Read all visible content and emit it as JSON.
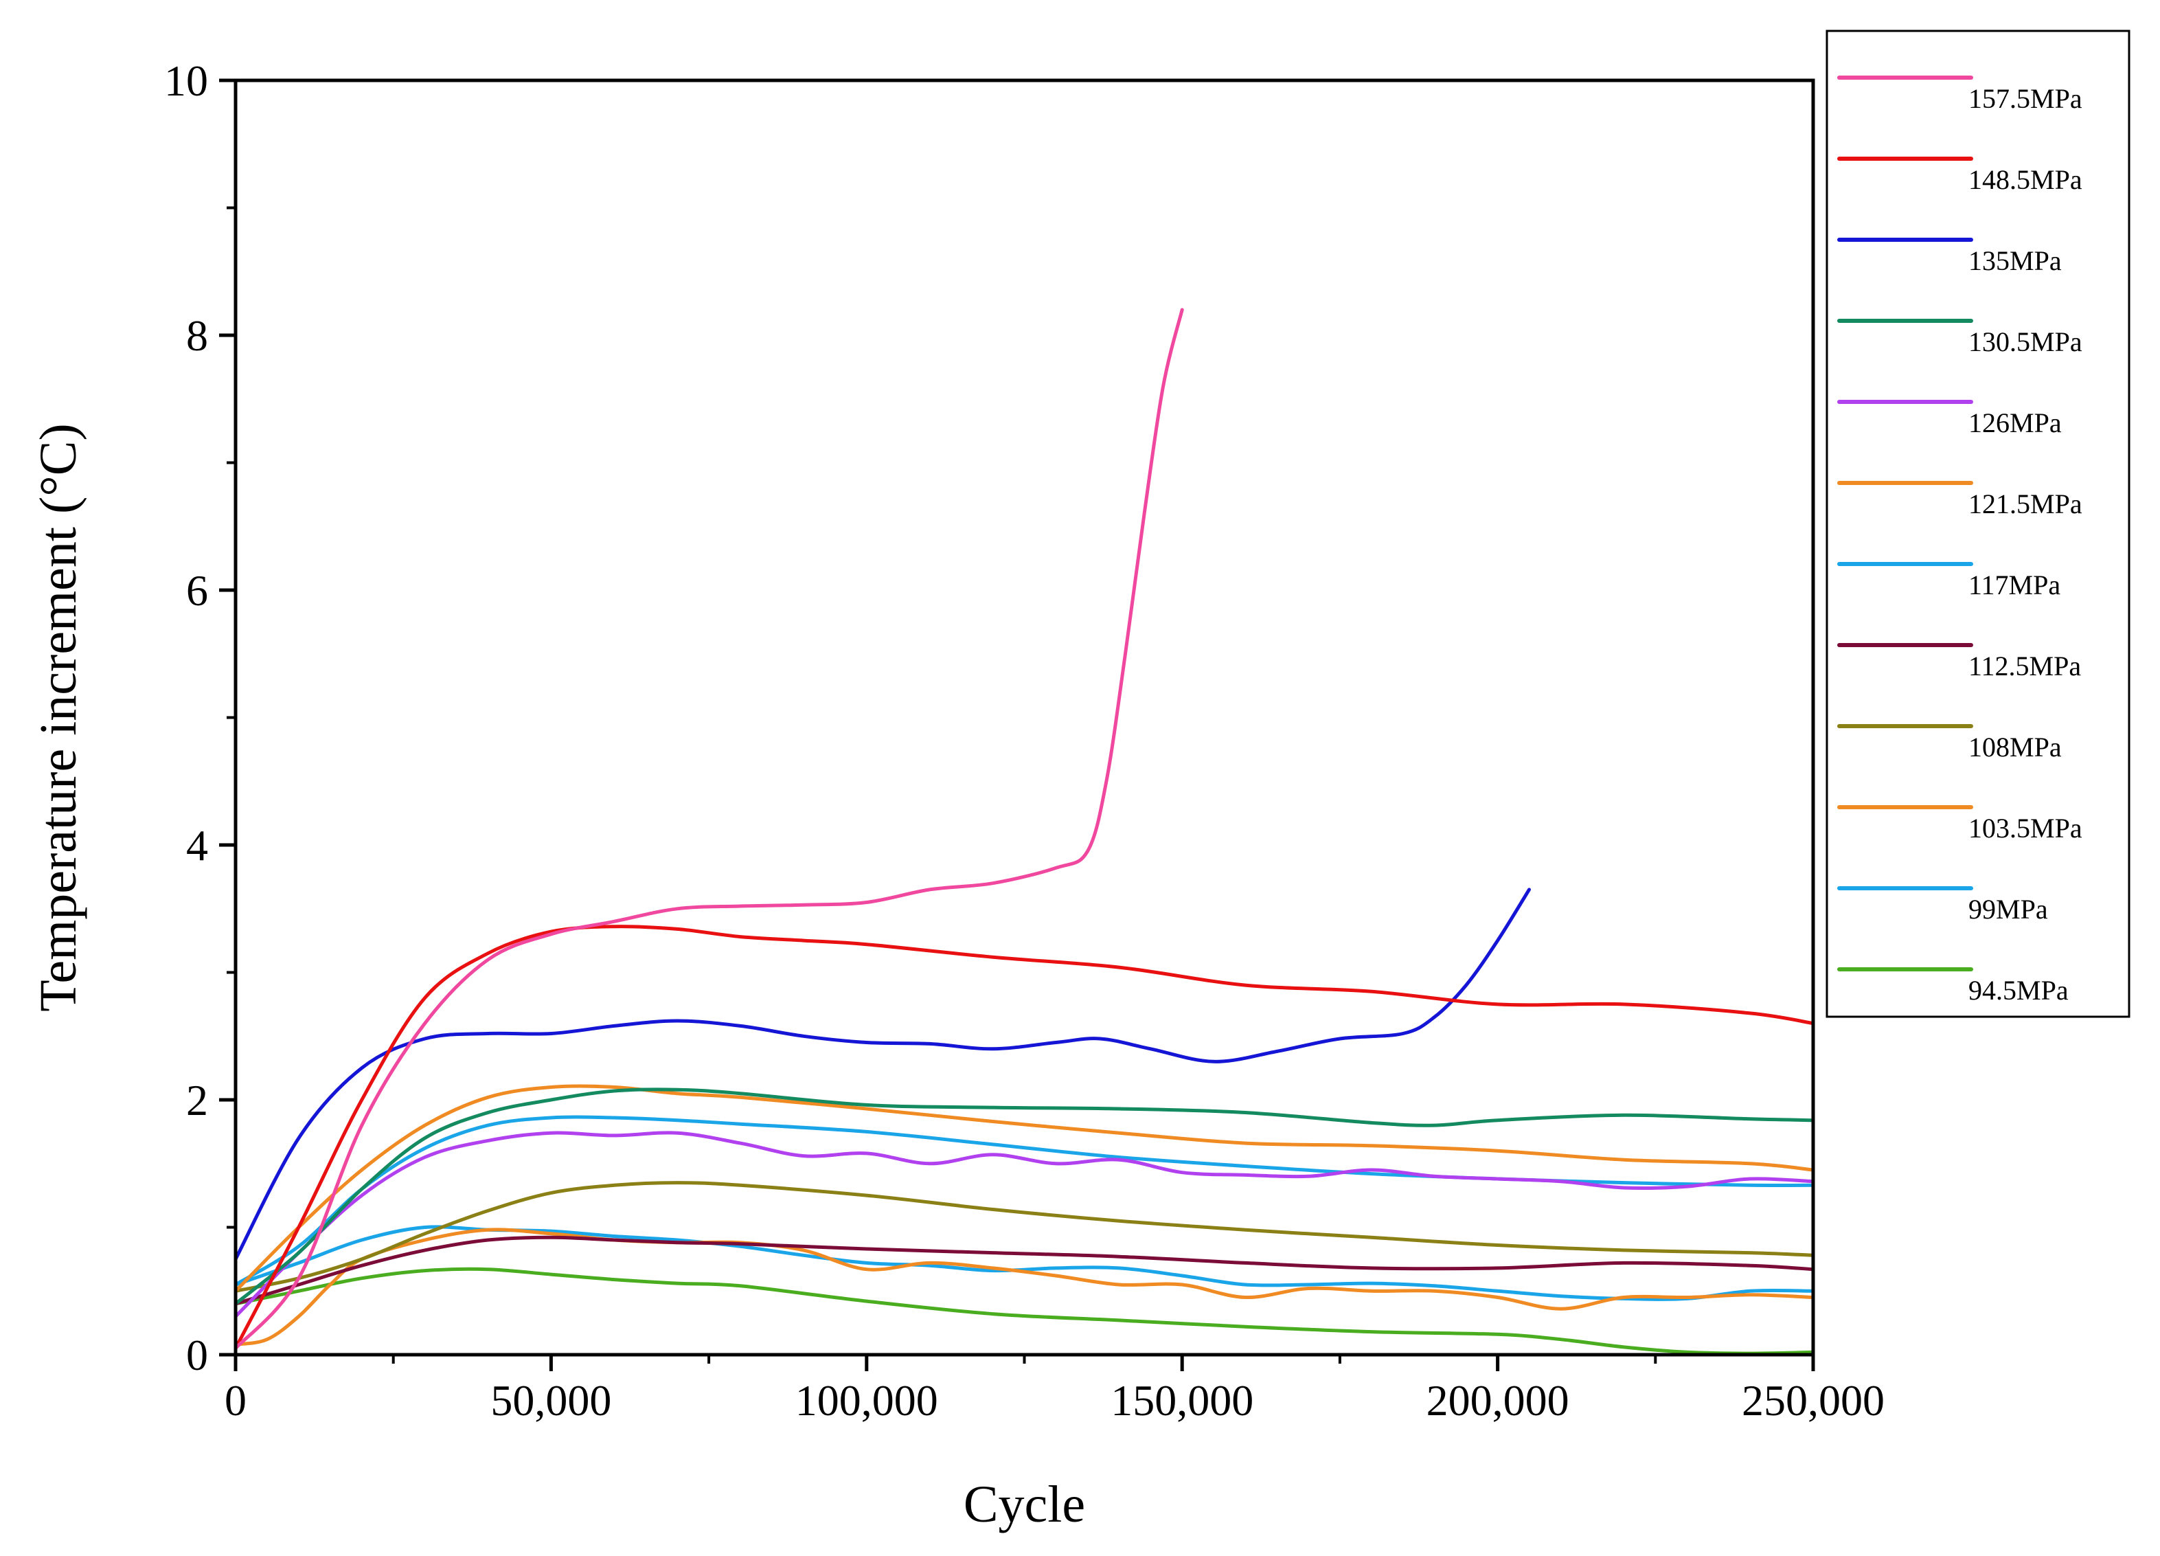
{
  "chart_data": {
    "type": "line",
    "title": "",
    "xlabel": "Cycle",
    "ylabel": "Temperature increment (°C)",
    "xlim": [
      0,
      250000
    ],
    "ylim": [
      0,
      10
    ],
    "x_ticks": [
      0,
      50000,
      100000,
      150000,
      200000,
      250000
    ],
    "x_tick_labels": [
      "0",
      "50,000",
      "100,000",
      "150,000",
      "200,000",
      "250,000"
    ],
    "y_ticks": [
      0,
      2,
      4,
      6,
      8,
      10
    ],
    "y_tick_labels": [
      "0",
      "2",
      "4",
      "6",
      "8",
      "10"
    ],
    "grid": false,
    "legend_position": "outside-top-right",
    "series": [
      {
        "name": "157.5MPa",
        "color": "#f0489f",
        "x": [
          0,
          10000,
          20000,
          30000,
          40000,
          50000,
          60000,
          70000,
          80000,
          90000,
          100000,
          110000,
          120000,
          130000,
          135000,
          138000,
          141000,
          144000,
          147000,
          150000
        ],
        "y": [
          0.05,
          0.6,
          1.8,
          2.6,
          3.1,
          3.3,
          3.4,
          3.5,
          3.52,
          3.53,
          3.55,
          3.65,
          3.7,
          3.82,
          3.95,
          4.5,
          5.5,
          6.6,
          7.6,
          8.2
        ]
      },
      {
        "name": "148.5MPa",
        "color": "#e81010",
        "x": [
          0,
          10000,
          20000,
          30000,
          40000,
          50000,
          60000,
          70000,
          80000,
          90000,
          100000,
          120000,
          140000,
          160000,
          180000,
          200000,
          220000,
          240000,
          250000
        ],
        "y": [
          0.05,
          1.0,
          2.0,
          2.8,
          3.15,
          3.32,
          3.36,
          3.34,
          3.28,
          3.25,
          3.22,
          3.12,
          3.04,
          2.9,
          2.85,
          2.75,
          2.75,
          2.68,
          2.6
        ]
      },
      {
        "name": "135MPa",
        "color": "#1515d6",
        "x": [
          0,
          10000,
          20000,
          30000,
          40000,
          50000,
          60000,
          70000,
          80000,
          90000,
          100000,
          110000,
          120000,
          130000,
          137000,
          145000,
          155000,
          165000,
          175000,
          185000,
          190000,
          195000,
          200000,
          205000
        ],
        "y": [
          0.75,
          1.7,
          2.25,
          2.48,
          2.52,
          2.52,
          2.58,
          2.62,
          2.58,
          2.5,
          2.45,
          2.44,
          2.4,
          2.45,
          2.48,
          2.4,
          2.3,
          2.38,
          2.48,
          2.52,
          2.65,
          2.9,
          3.25,
          3.65
        ]
      },
      {
        "name": "130.5MPa",
        "color": "#138a5f",
        "x": [
          0,
          10000,
          20000,
          30000,
          40000,
          50000,
          60000,
          70000,
          80000,
          100000,
          120000,
          140000,
          160000,
          180000,
          190000,
          200000,
          220000,
          240000,
          250000
        ],
        "y": [
          0.4,
          0.8,
          1.3,
          1.7,
          1.9,
          2.0,
          2.07,
          2.08,
          2.05,
          1.96,
          1.94,
          1.93,
          1.9,
          1.82,
          1.8,
          1.84,
          1.88,
          1.85,
          1.84
        ]
      },
      {
        "name": "126MPa",
        "color": "#b140ef",
        "x": [
          0,
          10000,
          20000,
          30000,
          40000,
          50000,
          60000,
          70000,
          80000,
          90000,
          100000,
          110000,
          120000,
          130000,
          140000,
          150000,
          160000,
          170000,
          180000,
          190000,
          200000,
          210000,
          220000,
          230000,
          240000,
          250000
        ],
        "y": [
          0.3,
          0.8,
          1.25,
          1.55,
          1.68,
          1.74,
          1.72,
          1.74,
          1.66,
          1.56,
          1.58,
          1.5,
          1.57,
          1.5,
          1.53,
          1.43,
          1.41,
          1.4,
          1.45,
          1.4,
          1.38,
          1.36,
          1.31,
          1.32,
          1.38,
          1.36
        ]
      },
      {
        "name": "121.5MPa",
        "color": "#f08a22",
        "x": [
          0,
          10000,
          20000,
          30000,
          40000,
          50000,
          60000,
          70000,
          80000,
          100000,
          120000,
          140000,
          160000,
          180000,
          200000,
          220000,
          240000,
          250000
        ],
        "y": [
          0.5,
          1.0,
          1.45,
          1.8,
          2.02,
          2.1,
          2.1,
          2.05,
          2.02,
          1.93,
          1.83,
          1.74,
          1.66,
          1.64,
          1.6,
          1.53,
          1.5,
          1.45
        ]
      },
      {
        "name": "117MPa",
        "color": "#1aa5e8",
        "x": [
          0,
          10000,
          20000,
          30000,
          40000,
          50000,
          60000,
          70000,
          80000,
          100000,
          120000,
          140000,
          160000,
          180000,
          200000,
          220000,
          240000,
          250000
        ],
        "y": [
          0.55,
          0.85,
          1.3,
          1.62,
          1.8,
          1.86,
          1.86,
          1.84,
          1.81,
          1.75,
          1.65,
          1.55,
          1.48,
          1.42,
          1.38,
          1.35,
          1.33,
          1.33
        ]
      },
      {
        "name": "112.5MPa",
        "color": "#7b0c38",
        "x": [
          0,
          10000,
          20000,
          30000,
          40000,
          50000,
          60000,
          70000,
          80000,
          100000,
          120000,
          140000,
          160000,
          180000,
          200000,
          220000,
          240000,
          250000
        ],
        "y": [
          0.4,
          0.55,
          0.7,
          0.82,
          0.9,
          0.92,
          0.9,
          0.88,
          0.87,
          0.83,
          0.8,
          0.77,
          0.72,
          0.68,
          0.68,
          0.72,
          0.7,
          0.67
        ]
      },
      {
        "name": "108MPa",
        "color": "#8a8015",
        "x": [
          0,
          10000,
          20000,
          30000,
          40000,
          50000,
          60000,
          70000,
          80000,
          100000,
          120000,
          140000,
          160000,
          180000,
          200000,
          220000,
          240000,
          250000
        ],
        "y": [
          0.5,
          0.6,
          0.75,
          0.95,
          1.13,
          1.27,
          1.33,
          1.35,
          1.33,
          1.25,
          1.14,
          1.05,
          0.98,
          0.92,
          0.86,
          0.82,
          0.8,
          0.78
        ]
      },
      {
        "name": "103.5MPa",
        "color": "#f08a22",
        "x": [
          0,
          5000,
          10000,
          15000,
          20000,
          30000,
          40000,
          50000,
          60000,
          70000,
          80000,
          90000,
          100000,
          110000,
          120000,
          130000,
          140000,
          150000,
          160000,
          170000,
          180000,
          190000,
          200000,
          210000,
          220000,
          230000,
          240000,
          250000
        ],
        "y": [
          0.08,
          0.12,
          0.3,
          0.55,
          0.75,
          0.9,
          0.98,
          0.95,
          0.9,
          0.88,
          0.88,
          0.82,
          0.67,
          0.72,
          0.68,
          0.62,
          0.55,
          0.55,
          0.45,
          0.52,
          0.5,
          0.5,
          0.45,
          0.36,
          0.45,
          0.45,
          0.47,
          0.45
        ]
      },
      {
        "name": "99MPa",
        "color": "#1aa5e8",
        "x": [
          0,
          10000,
          20000,
          30000,
          40000,
          50000,
          60000,
          70000,
          80000,
          90000,
          100000,
          110000,
          120000,
          130000,
          140000,
          150000,
          160000,
          170000,
          180000,
          190000,
          200000,
          210000,
          220000,
          230000,
          240000,
          250000
        ],
        "y": [
          0.55,
          0.72,
          0.9,
          1.0,
          0.98,
          0.97,
          0.93,
          0.9,
          0.85,
          0.78,
          0.72,
          0.7,
          0.66,
          0.68,
          0.68,
          0.62,
          0.55,
          0.55,
          0.56,
          0.54,
          0.5,
          0.46,
          0.44,
          0.44,
          0.5,
          0.5
        ]
      },
      {
        "name": "94.5MPa",
        "color": "#4aad1f",
        "x": [
          0,
          10000,
          20000,
          30000,
          40000,
          50000,
          60000,
          70000,
          80000,
          100000,
          120000,
          140000,
          160000,
          180000,
          200000,
          210000,
          220000,
          230000,
          240000,
          250000
        ],
        "y": [
          0.4,
          0.5,
          0.6,
          0.66,
          0.67,
          0.63,
          0.59,
          0.56,
          0.54,
          0.42,
          0.32,
          0.27,
          0.22,
          0.18,
          0.16,
          0.12,
          0.06,
          0.02,
          0.01,
          0.02
        ]
      }
    ]
  }
}
